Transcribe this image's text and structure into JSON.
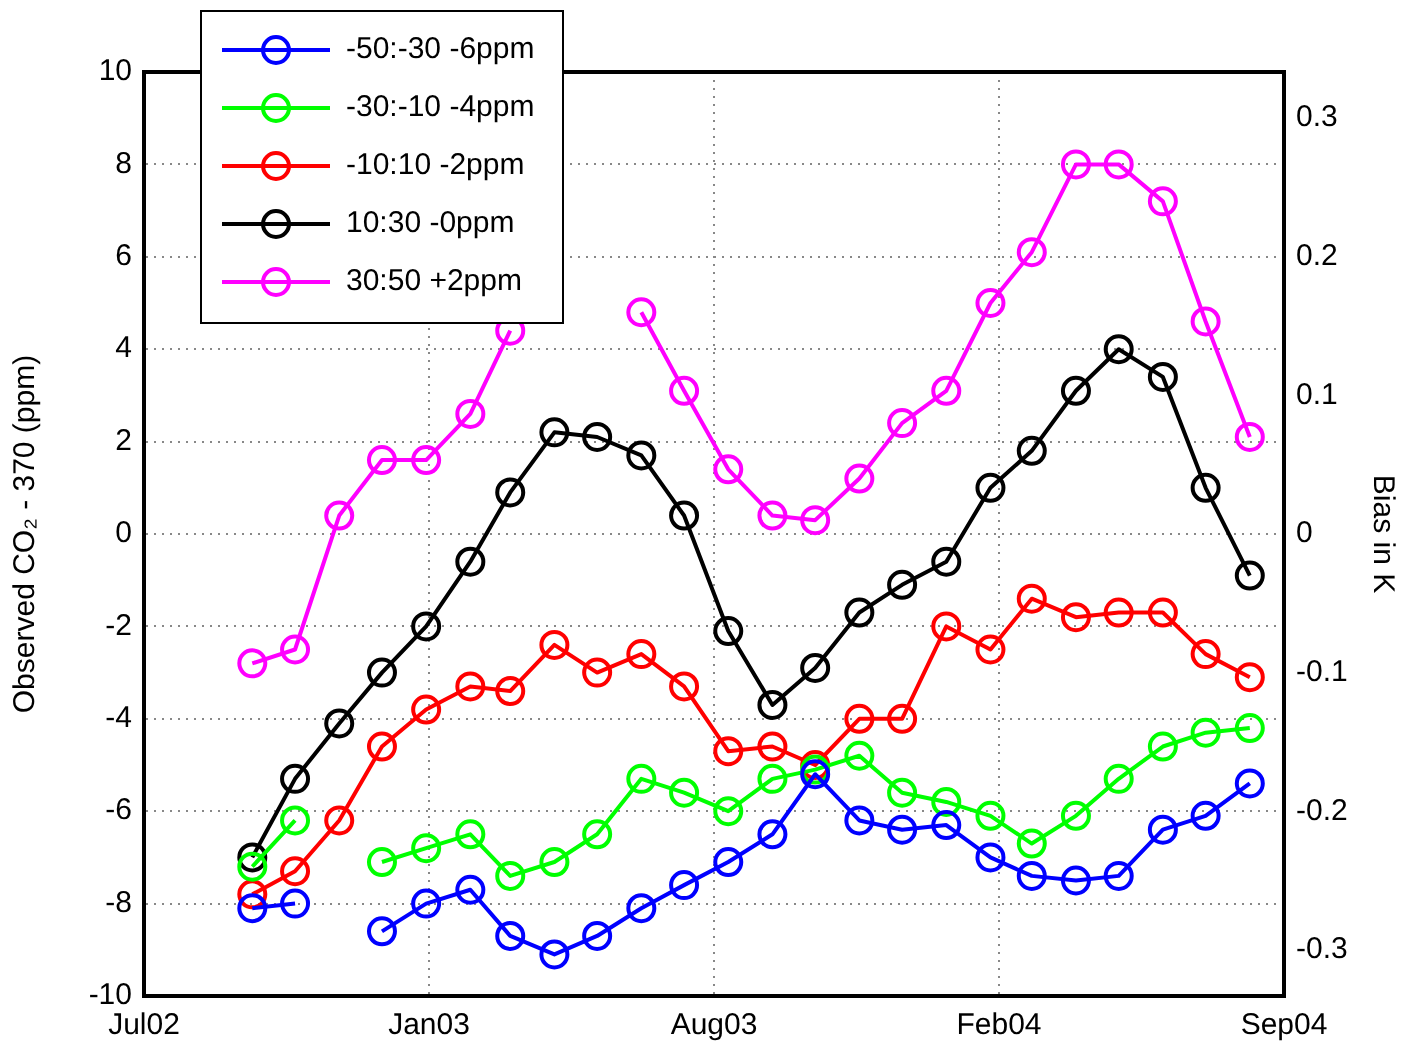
{
  "chart_data": {
    "type": "line",
    "ylabel": "Observed CO₂ - 370 (ppm)",
    "y2label": "Bias in K",
    "x": [
      "2002-09-15",
      "2002-10-15",
      "2002-11-15",
      "2002-12-15",
      "2003-01-15",
      "2003-02-15",
      "2003-03-15",
      "2003-04-15",
      "2003-05-15",
      "2003-06-15",
      "2003-07-15",
      "2003-08-15",
      "2003-09-15",
      "2003-10-15",
      "2003-11-15",
      "2003-12-15",
      "2004-01-15",
      "2004-02-15",
      "2004-03-15",
      "2004-04-15",
      "2004-05-15",
      "2004-06-15",
      "2004-07-15",
      "2004-08-15"
    ],
    "series": [
      {
        "name": "-50:-30 -6ppm",
        "color": "#0000ff",
        "values": [
          -8.1,
          -8.0,
          null,
          -8.6,
          -8.0,
          -7.7,
          -8.7,
          -9.1,
          -8.7,
          -8.1,
          -7.6,
          -7.1,
          -6.5,
          -5.2,
          -6.2,
          -6.4,
          -6.3,
          -7.0,
          -7.4,
          -7.5,
          -7.4,
          -6.4,
          -6.1,
          -5.4
        ]
      },
      {
        "name": "-30:-10 -4ppm",
        "color": "#00ff00",
        "values": [
          -7.2,
          -6.2,
          null,
          -7.1,
          -6.8,
          -6.5,
          -7.4,
          -7.1,
          -6.5,
          -5.3,
          -5.6,
          -6.0,
          -5.3,
          -5.1,
          -4.8,
          -5.6,
          -5.8,
          -6.1,
          -6.7,
          -6.1,
          -5.3,
          -4.6,
          -4.3,
          -4.2
        ]
      },
      {
        "name": "-10:10 -2ppm",
        "color": "#ff0000",
        "values": [
          -7.8,
          -7.3,
          -6.2,
          -4.6,
          -3.8,
          -3.3,
          -3.4,
          -2.4,
          -3.0,
          -2.6,
          -3.3,
          -4.7,
          -4.6,
          -5.0,
          -4.0,
          -4.0,
          -2.0,
          -2.5,
          -1.4,
          -1.8,
          -1.7,
          -1.7,
          -2.6,
          -3.1
        ]
      },
      {
        "name": "10:30 -0ppm",
        "color": "#000000",
        "values": [
          -7.0,
          -5.3,
          -4.1,
          -3.0,
          -2.0,
          -0.6,
          0.9,
          2.2,
          2.1,
          1.7,
          0.4,
          -2.1,
          -3.7,
          -2.9,
          -1.7,
          -1.1,
          -0.6,
          1.0,
          1.8,
          3.1,
          4.0,
          3.4,
          1.0,
          -0.9
        ]
      },
      {
        "name": "30:50 +2ppm",
        "color": "#ff00ff",
        "values": [
          -2.8,
          -2.5,
          0.4,
          1.6,
          1.6,
          2.6,
          4.4,
          null,
          null,
          4.8,
          3.1,
          1.4,
          0.4,
          0.3,
          1.2,
          2.4,
          3.1,
          5.0,
          6.1,
          8.0,
          8.0,
          7.2,
          4.6,
          2.1
        ]
      }
    ],
    "xlim": [
      "2002-07-01",
      "2004-09-08"
    ],
    "xticks": [
      {
        "value": "2002-07-01",
        "label": "Jul02"
      },
      {
        "value": "2003-01-17",
        "label": "Jan03"
      },
      {
        "value": "2003-08-05",
        "label": "Aug03"
      },
      {
        "value": "2004-02-21",
        "label": "Feb04"
      },
      {
        "value": "2004-09-08",
        "label": "Sep04"
      }
    ],
    "ylim": [
      -10,
      10
    ],
    "yticks": [
      -10,
      -8,
      -6,
      -4,
      -2,
      0,
      2,
      4,
      6,
      8,
      10
    ],
    "y2lim": [
      -0.3333,
      0.3333
    ],
    "y2ticks": [
      -0.3,
      -0.2,
      -0.1,
      0,
      0.1,
      0.2,
      0.3
    ],
    "grid": true,
    "legend": "top left",
    "marker": "circle",
    "line_style": "solid"
  }
}
